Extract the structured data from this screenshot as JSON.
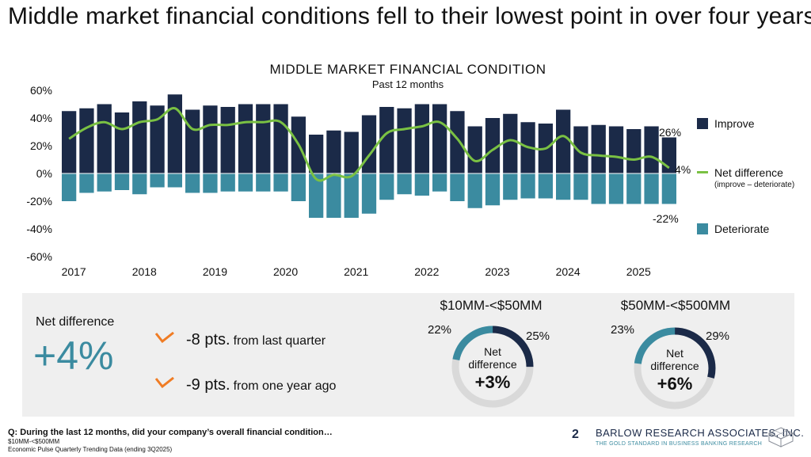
{
  "slide_title": "Middle market financial conditions fell to their lowest point in over four years",
  "colors": {
    "improve": "#1b2a48",
    "deteriorate": "#3b8ba0",
    "net": "#7ac143",
    "accent_orange": "#f07c24",
    "donut_gray": "#d9d9d9"
  },
  "chart_data": {
    "type": "bar",
    "title": "MIDDLE MARKET FINANCIAL CONDITION",
    "subtitle": "Past 12 months",
    "xlabel": "",
    "ylabel": "",
    "ylim": [
      -60,
      60
    ],
    "y_ticks": [
      "60%",
      "40%",
      "20%",
      "0%",
      "-20%",
      "-40%",
      "-60%"
    ],
    "x_tick_labels": [
      "2017",
      "2018",
      "2019",
      "2020",
      "2021",
      "2022",
      "2023",
      "2024",
      "2025"
    ],
    "grid": false,
    "legend_position": "right",
    "series": [
      {
        "name": "Improve",
        "type": "bar",
        "values": [
          45,
          47,
          50,
          44,
          52,
          49,
          57,
          46,
          49,
          48,
          50,
          50,
          50,
          41,
          28,
          31,
          30,
          42,
          48,
          47,
          50,
          50,
          45,
          34,
          40,
          43,
          37,
          36,
          46,
          34,
          35,
          34,
          32,
          34,
          26
        ]
      },
      {
        "name": "Deteriorate",
        "type": "bar",
        "values": [
          -20,
          -14,
          -13,
          -12,
          -15,
          -10,
          -10,
          -14,
          -14,
          -13,
          -13,
          -13,
          -13,
          -20,
          -32,
          -32,
          -32,
          -29,
          -19,
          -15,
          -16,
          -13,
          -20,
          -25,
          -23,
          -19,
          -18,
          -18,
          -19,
          -19,
          -22,
          -22,
          -22,
          -22,
          -22
        ]
      },
      {
        "name": "Net difference",
        "note": "(improve – deteriorate)",
        "type": "line",
        "values": [
          25,
          33,
          37,
          32,
          37,
          39,
          47,
          32,
          35,
          35,
          37,
          37,
          37,
          21,
          -4,
          -1,
          -2,
          13,
          29,
          32,
          34,
          37,
          25,
          9,
          17,
          24,
          19,
          18,
          27,
          15,
          13,
          12,
          10,
          12,
          4
        ]
      }
    ],
    "end_labels": {
      "improve": "26%",
      "net": "4%",
      "deteriorate": "-22%"
    }
  },
  "summary": {
    "net_label": "Net difference",
    "net_value": "+4%",
    "changes": [
      {
        "value": "-8 pts.",
        "text": "from last quarter"
      },
      {
        "value": "-9 pts.",
        "text": "from one year ago"
      }
    ]
  },
  "donuts": [
    {
      "title": "$10MM-<$50MM",
      "improve": 25,
      "deteriorate": 22,
      "improve_label": "25%",
      "deteriorate_label": "22%",
      "center_l1": "Net",
      "center_l2": "difference",
      "center_value": "+3%"
    },
    {
      "title": "$50MM-<$500MM",
      "improve": 29,
      "deteriorate": 23,
      "improve_label": "29%",
      "deteriorate_label": "23%",
      "center_l1": "Net",
      "center_l2": "difference",
      "center_value": "+6%"
    }
  ],
  "footer": {
    "question": "Q: During the last 12 months, did your company’s overall financial condition…",
    "segment": "$10MM-<$500MM",
    "source": "Economic Pulse Quarterly Trending Data (ending 3Q2025)",
    "page_number": "2",
    "brand": "BARLOW RESEARCH ASSOCIATES, INC.",
    "tagline": "THE GOLD STANDARD IN BUSINESS BANKING RESEARCH"
  }
}
